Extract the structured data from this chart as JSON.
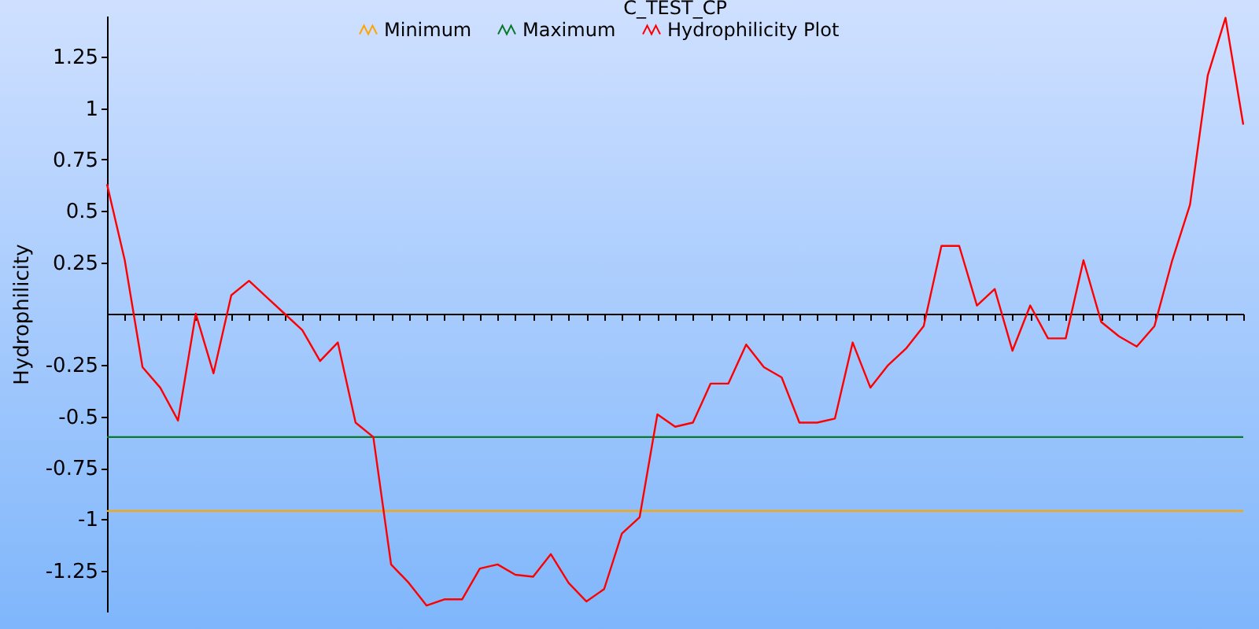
{
  "chart_data": {
    "type": "line",
    "title": "C_TEST_CP",
    "ylabel": "Hydrophilicity",
    "categories": [
      null,
      null,
      null,
      null,
      null,
      null,
      null,
      null,
      null,
      null,
      null,
      null,
      null,
      null,
      null,
      null,
      null,
      null,
      null,
      null,
      null,
      null,
      null,
      null,
      null,
      null,
      null,
      null,
      null,
      null,
      null,
      null,
      null,
      null,
      null,
      null,
      null,
      null,
      null,
      null,
      null,
      null,
      null,
      null,
      null,
      null,
      null,
      null,
      null,
      null,
      null,
      null,
      null,
      null,
      null,
      null,
      null,
      null,
      null,
      null,
      null,
      null,
      null,
      null,
      null
    ],
    "series": [
      {
        "name": "Minimum",
        "color": "#ffa500",
        "values": [
          -0.96,
          -0.96,
          -0.96,
          -0.96,
          -0.96,
          -0.96,
          -0.96,
          -0.96,
          -0.96,
          -0.96,
          -0.96,
          -0.96,
          -0.96,
          -0.96,
          -0.96,
          -0.96,
          -0.96,
          -0.96,
          -0.96,
          -0.96,
          -0.96,
          -0.96,
          -0.96,
          -0.96,
          -0.96,
          -0.96,
          -0.96,
          -0.96,
          -0.96,
          -0.96,
          -0.96,
          -0.96,
          -0.96,
          -0.96,
          -0.96,
          -0.96,
          -0.96,
          -0.96,
          -0.96,
          -0.96,
          -0.96,
          -0.96,
          -0.96,
          -0.96,
          -0.96,
          -0.96,
          -0.96,
          -0.96,
          -0.96,
          -0.96,
          -0.96,
          -0.96,
          -0.96,
          -0.96,
          -0.96,
          -0.96,
          -0.96,
          -0.96,
          -0.96,
          -0.96,
          -0.96,
          -0.96,
          -0.96,
          -0.96,
          -0.96
        ]
      },
      {
        "name": "Maximum",
        "color": "#0a7a2a",
        "values": [
          -0.6,
          -0.6,
          -0.6,
          -0.6,
          -0.6,
          -0.6,
          -0.6,
          -0.6,
          -0.6,
          -0.6,
          -0.6,
          -0.6,
          -0.6,
          -0.6,
          -0.6,
          -0.6,
          -0.6,
          -0.6,
          -0.6,
          -0.6,
          -0.6,
          -0.6,
          -0.6,
          -0.6,
          -0.6,
          -0.6,
          -0.6,
          -0.6,
          -0.6,
          -0.6,
          -0.6,
          -0.6,
          -0.6,
          -0.6,
          -0.6,
          -0.6,
          -0.6,
          -0.6,
          -0.6,
          -0.6,
          -0.6,
          -0.6,
          -0.6,
          -0.6,
          -0.6,
          -0.6,
          -0.6,
          -0.6,
          -0.6,
          -0.6,
          -0.6,
          -0.6,
          -0.6,
          -0.6,
          -0.6,
          -0.6,
          -0.6,
          -0.6,
          -0.6,
          -0.6,
          -0.6,
          -0.6,
          -0.6,
          -0.6,
          -0.6
        ]
      },
      {
        "name": "Hydrophilicity Plot",
        "color": "#ff0000",
        "values": [
          0.63,
          0.26,
          -0.26,
          -0.36,
          -0.52,
          0.0,
          -0.29,
          0.09,
          0.16,
          0.08,
          0.0,
          -0.08,
          -0.23,
          -0.14,
          -0.53,
          -0.6,
          -1.22,
          -1.31,
          -1.42,
          -1.39,
          -1.39,
          -1.24,
          -1.22,
          -1.27,
          -1.28,
          -1.17,
          -1.31,
          -1.4,
          -1.34,
          -1.07,
          -0.99,
          -0.49,
          -0.55,
          -0.53,
          -0.34,
          -0.34,
          -0.15,
          -0.26,
          -0.31,
          -0.53,
          -0.53,
          -0.51,
          -0.14,
          -0.36,
          -0.25,
          -0.17,
          -0.06,
          0.33,
          0.33,
          0.04,
          0.12,
          -0.18,
          0.04,
          -0.12,
          -0.12,
          0.26,
          -0.04,
          -0.11,
          -0.16,
          -0.06,
          0.26,
          0.53,
          1.16,
          1.44,
          0.92
        ]
      }
    ],
    "ylim": [
      -1.45,
      1.45
    ],
    "yticks": [
      1.25,
      1,
      0.75,
      0.5,
      0.25,
      -0.25,
      -0.5,
      -0.75,
      -1,
      -1.25
    ],
    "tick_labels": "y",
    "legend": "top"
  }
}
